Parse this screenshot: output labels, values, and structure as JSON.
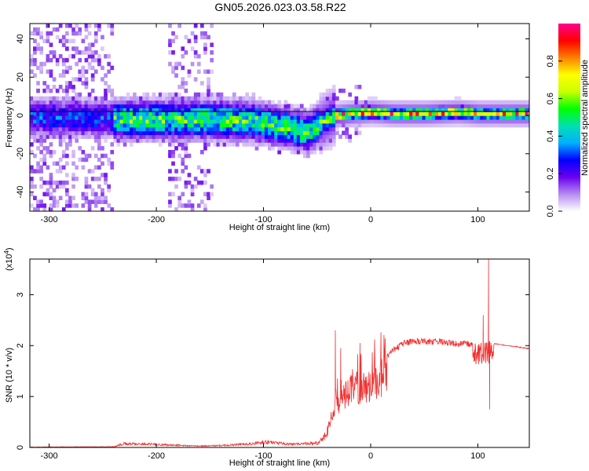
{
  "title": "GN05.2026.023.03.58.R22",
  "chart_data": [
    {
      "type": "heatmap",
      "xlabel": "Height of straight line (km)",
      "ylabel": "Frequency (Hz)",
      "xlim": [
        -318,
        148
      ],
      "ylim": [
        -50,
        48
      ],
      "xticks": [
        -300,
        -200,
        -100,
        0,
        100
      ],
      "yticks": [
        -40,
        -20,
        0,
        20,
        40
      ],
      "colorbar": {
        "label": "Normalized spectral amplitude",
        "range": [
          0,
          1
        ],
        "ticks": [
          "0.0",
          "0.2",
          "0.4",
          "0.6",
          "0.8"
        ],
        "tick_values": [
          0,
          0.2,
          0.4,
          0.6,
          0.8
        ],
        "colormap": [
          "#ffffff",
          "#b58cf0",
          "#6a00f0",
          "#0000ff",
          "#00b0ff",
          "#00e0b0",
          "#00ff00",
          "#c8ff00",
          "#ffff00",
          "#ff8000",
          "#ff0000",
          "#ff0090"
        ]
      },
      "ridge": {
        "x": [
          -260,
          -240,
          -200,
          -150,
          -110,
          -80,
          -60,
          -45,
          -35,
          -20,
          0,
          20,
          50,
          80,
          100,
          110,
          148
        ],
        "y": [
          -2,
          -3,
          -3,
          -3,
          -4,
          -7,
          -10,
          -4,
          -1,
          0,
          1,
          0,
          0,
          1,
          0,
          0,
          0
        ]
      }
    },
    {
      "type": "line",
      "xlabel": "Height of straight line (km)",
      "ylabel": "SNR (10 * v/v)",
      "scale_label": "(x10",
      "scale_exp": "4",
      "xlim": [
        -318,
        148
      ],
      "ylim": [
        0,
        3.7
      ],
      "xticks": [
        -300,
        -200,
        -100,
        0,
        100
      ],
      "yticks": [
        0,
        1,
        2,
        3
      ],
      "color": "#f03030",
      "envelope": {
        "x": [
          -318,
          -240,
          -230,
          -200,
          -180,
          -160,
          -140,
          -110,
          -100,
          -80,
          -70,
          -50,
          -45,
          -40,
          -35,
          -30,
          -25,
          -20,
          -10,
          0,
          10,
          20,
          30,
          40,
          60,
          80,
          95,
          105,
          110,
          115,
          148
        ],
        "y": [
          0.01,
          0.02,
          0.1,
          0.08,
          0.06,
          0.04,
          0.05,
          0.1,
          0.15,
          0.1,
          0.09,
          0.12,
          0.2,
          0.45,
          0.9,
          1.1,
          1.25,
          1.45,
          1.5,
          1.5,
          1.75,
          1.95,
          2.1,
          2.15,
          2.15,
          2.1,
          2.1,
          2.05,
          2.1,
          2.05,
          1.95
        ]
      },
      "spikes": {
        "x": [
          -33,
          -28,
          -10,
          105,
          110,
          111
        ],
        "y": [
          2.3,
          1.95,
          2.05,
          2.6,
          3.7,
          0.75
        ]
      }
    }
  ]
}
